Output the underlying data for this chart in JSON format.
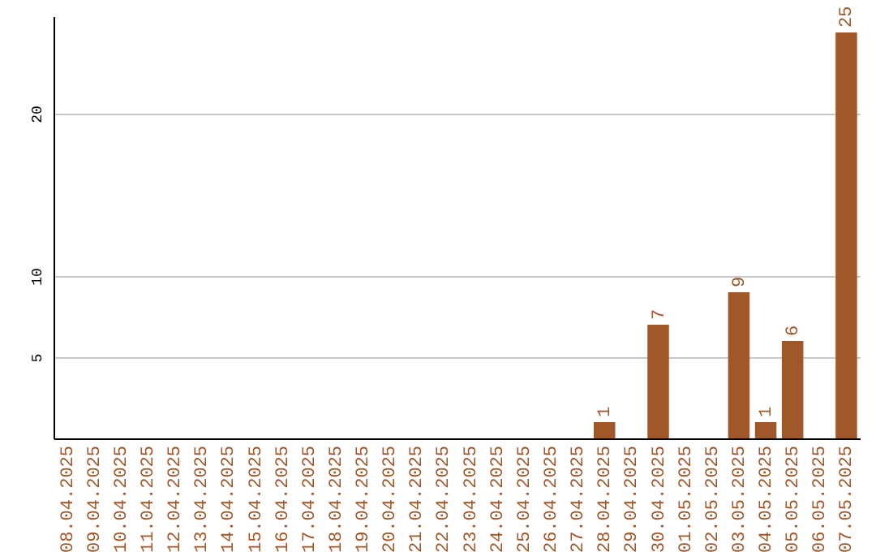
{
  "chart_data": {
    "type": "bar",
    "categories": [
      "08.04.2025",
      "09.04.2025",
      "10.04.2025",
      "11.04.2025",
      "12.04.2025",
      "13.04.2025",
      "14.04.2025",
      "15.04.2025",
      "16.04.2025",
      "17.04.2025",
      "18.04.2025",
      "19.04.2025",
      "20.04.2025",
      "21.04.2025",
      "22.04.2025",
      "23.04.2025",
      "24.04.2025",
      "25.04.2025",
      "26.04.2025",
      "27.04.2025",
      "28.04.2025",
      "29.04.2025",
      "30.04.2025",
      "01.05.2025",
      "02.05.2025",
      "03.05.2025",
      "04.05.2025",
      "05.05.2025",
      "06.05.2025",
      "07.05.2025"
    ],
    "values": [
      0,
      0,
      0,
      0,
      0,
      0,
      0,
      0,
      0,
      0,
      0,
      0,
      0,
      0,
      0,
      0,
      0,
      0,
      0,
      0,
      1,
      0,
      7,
      0,
      0,
      9,
      1,
      6,
      0,
      25
    ],
    "value_labels": [
      null,
      null,
      null,
      null,
      null,
      null,
      null,
      null,
      null,
      null,
      null,
      null,
      null,
      null,
      null,
      null,
      null,
      null,
      null,
      null,
      "1",
      null,
      "7",
      null,
      null,
      "9",
      "1",
      "6",
      null,
      "25"
    ],
    "color": "#a0572a",
    "ylim": [
      0,
      26
    ],
    "yticks": [
      5,
      10,
      20
    ],
    "grid": "y"
  }
}
